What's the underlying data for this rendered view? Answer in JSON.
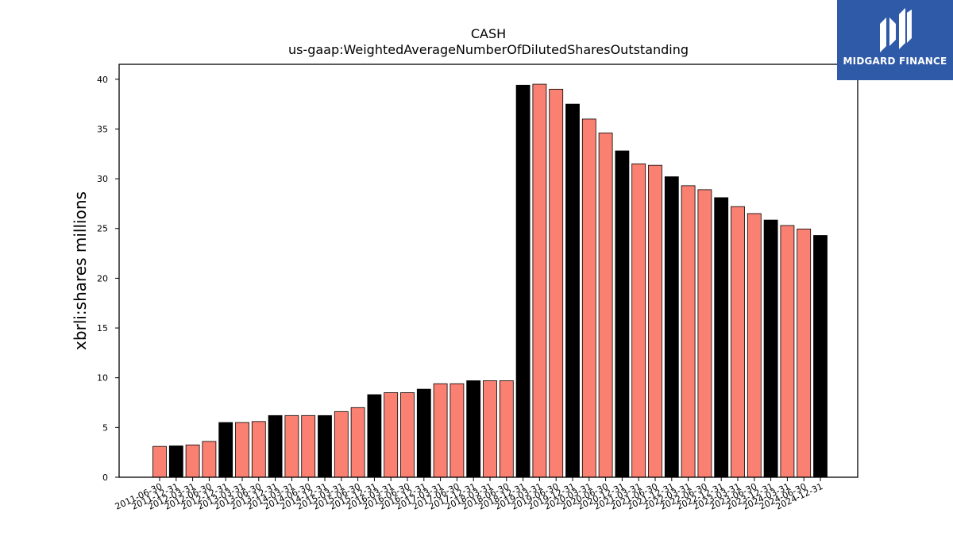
{
  "chart_data": {
    "type": "bar",
    "title": "CASH",
    "subtitle": "us-gaap:WeightedAverageNumberOfDilutedSharesOutstanding",
    "xlabel": "",
    "ylabel": "xbrli:shares millions",
    "ylim": [
      0,
      41.5
    ],
    "yticks": [
      "0",
      "5",
      "10",
      "15",
      "20",
      "25",
      "30",
      "35",
      "40"
    ],
    "grid": false,
    "colors": {
      "fiscal_year_end": "#000000",
      "quarter": "#fa8072",
      "edge": "#000000"
    },
    "categories": [
      "2011-06-30",
      "2011-12-31",
      "2012-03-31",
      "2012-06-30",
      "2012-12-31",
      "2013-03-31",
      "2013-06-30",
      "2013-12-31",
      "2014-03-31",
      "2014-06-30",
      "2014-12-31",
      "2015-03-31",
      "2015-06-30",
      "2015-12-31",
      "2016-03-31",
      "2016-06-30",
      "2016-12-31",
      "2017-03-31",
      "2017-06-30",
      "2017-12-31",
      "2018-03-31",
      "2018-06-30",
      "2018-12-31",
      "2019-03-31",
      "2019-06-30",
      "2019-12-31",
      "2020-03-31",
      "2020-06-30",
      "2020-12-31",
      "2021-03-31",
      "2021-06-30",
      "2021-12-31",
      "2022-03-31",
      "2022-06-30",
      "2022-12-31",
      "2023-03-31",
      "2023-06-30",
      "2023-12-31",
      "2024-03-31",
      "2024-06-30",
      "2024-12-31"
    ],
    "values": [
      3.1,
      3.15,
      3.25,
      3.6,
      5.5,
      5.5,
      5.6,
      6.2,
      6.2,
      6.2,
      6.2,
      6.6,
      7.0,
      8.3,
      8.5,
      8.5,
      8.85,
      9.4,
      9.4,
      9.7,
      9.7,
      9.7,
      39.4,
      39.5,
      39.0,
      37.5,
      36.0,
      34.6,
      32.8,
      31.5,
      31.35,
      30.2,
      29.3,
      28.9,
      28.1,
      27.2,
      26.5,
      25.85,
      25.3,
      24.95,
      24.3
    ],
    "highlight": [
      false,
      true,
      false,
      false,
      true,
      false,
      false,
      true,
      false,
      false,
      true,
      false,
      false,
      true,
      false,
      false,
      true,
      false,
      false,
      true,
      false,
      false,
      true,
      false,
      false,
      true,
      false,
      false,
      true,
      false,
      false,
      true,
      false,
      false,
      true,
      false,
      false,
      true,
      false,
      false,
      true
    ]
  },
  "logo": {
    "text": "MIDGARD FINANCE",
    "color": "#2f5aa8"
  }
}
